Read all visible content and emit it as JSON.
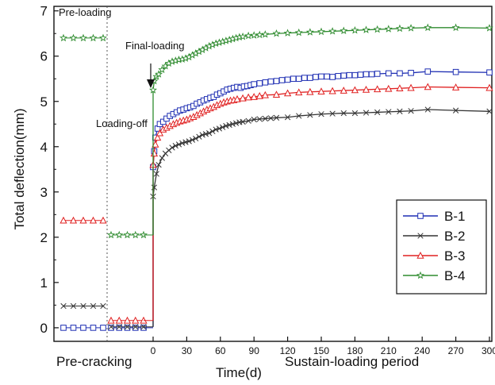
{
  "chart_data": {
    "type": "line",
    "ylabel": "Total deflection(mm)",
    "xlabel": "Time(d)",
    "ylim": [
      -0.3,
      7.1
    ],
    "yticks": [
      0,
      1,
      2,
      3,
      4,
      5,
      6,
      7
    ],
    "xlim": [
      0,
      300
    ],
    "xticks": [
      0,
      30,
      60,
      90,
      120,
      150,
      180,
      210,
      240,
      270,
      300
    ],
    "phase_labels": {
      "left": "Pre-cracking",
      "right": "Sustain-loading period"
    },
    "annotations": {
      "preloading": "Pre-loading",
      "final_loading": "Final-loading",
      "loading_off": "Loading-off"
    },
    "legend_position": "right",
    "grid": false,
    "series": [
      {
        "name": "B-1",
        "color": "#1f2fb3",
        "marker": "square",
        "precrack_segments": [
          {
            "y": 0.0,
            "n": 5
          },
          {
            "y": 0.0,
            "n": 5
          }
        ],
        "values": [
          [
            0,
            0.02
          ],
          [
            0,
            3.55
          ],
          [
            1,
            3.9
          ],
          [
            2,
            4.2
          ],
          [
            4,
            4.4
          ],
          [
            6,
            4.5
          ],
          [
            9,
            4.55
          ],
          [
            12,
            4.62
          ],
          [
            15,
            4.68
          ],
          [
            18,
            4.72
          ],
          [
            21,
            4.76
          ],
          [
            24,
            4.8
          ],
          [
            27,
            4.82
          ],
          [
            30,
            4.85
          ],
          [
            33,
            4.87
          ],
          [
            36,
            4.9
          ],
          [
            39,
            4.95
          ],
          [
            42,
            4.98
          ],
          [
            45,
            5.02
          ],
          [
            48,
            5.05
          ],
          [
            51,
            5.08
          ],
          [
            54,
            5.1
          ],
          [
            57,
            5.15
          ],
          [
            60,
            5.18
          ],
          [
            63,
            5.22
          ],
          [
            66,
            5.26
          ],
          [
            69,
            5.28
          ],
          [
            72,
            5.3
          ],
          [
            75,
            5.32
          ],
          [
            78,
            5.3
          ],
          [
            81,
            5.33
          ],
          [
            84,
            5.34
          ],
          [
            87,
            5.36
          ],
          [
            90,
            5.38
          ],
          [
            95,
            5.4
          ],
          [
            100,
            5.42
          ],
          [
            105,
            5.44
          ],
          [
            110,
            5.45
          ],
          [
            115,
            5.47
          ],
          [
            120,
            5.48
          ],
          [
            125,
            5.5
          ],
          [
            130,
            5.5
          ],
          [
            135,
            5.52
          ],
          [
            140,
            5.52
          ],
          [
            145,
            5.54
          ],
          [
            150,
            5.55
          ],
          [
            155,
            5.55
          ],
          [
            160,
            5.54
          ],
          [
            165,
            5.56
          ],
          [
            170,
            5.57
          ],
          [
            175,
            5.58
          ],
          [
            180,
            5.58
          ],
          [
            185,
            5.59
          ],
          [
            190,
            5.6
          ],
          [
            195,
            5.6
          ],
          [
            200,
            5.61
          ],
          [
            210,
            5.62
          ],
          [
            220,
            5.62
          ],
          [
            230,
            5.63
          ],
          [
            245,
            5.66
          ],
          [
            270,
            5.65
          ],
          [
            300,
            5.64
          ]
        ]
      },
      {
        "name": "B-2",
        "color": "#333333",
        "marker": "cross",
        "precrack_segments": [
          {
            "y": 0.48,
            "n": 5
          },
          {
            "y": 0.02,
            "n": 5
          }
        ],
        "values": [
          [
            0,
            0.02
          ],
          [
            0,
            2.9
          ],
          [
            1,
            3.1
          ],
          [
            3,
            3.4
          ],
          [
            5,
            3.6
          ],
          [
            8,
            3.75
          ],
          [
            11,
            3.85
          ],
          [
            14,
            3.92
          ],
          [
            17,
            3.98
          ],
          [
            20,
            4.02
          ],
          [
            23,
            4.05
          ],
          [
            26,
            4.08
          ],
          [
            29,
            4.1
          ],
          [
            32,
            4.12
          ],
          [
            35,
            4.15
          ],
          [
            38,
            4.18
          ],
          [
            41,
            4.22
          ],
          [
            44,
            4.26
          ],
          [
            47,
            4.28
          ],
          [
            50,
            4.3
          ],
          [
            53,
            4.34
          ],
          [
            56,
            4.38
          ],
          [
            59,
            4.4
          ],
          [
            62,
            4.43
          ],
          [
            65,
            4.46
          ],
          [
            68,
            4.48
          ],
          [
            71,
            4.5
          ],
          [
            74,
            4.52
          ],
          [
            77,
            4.54
          ],
          [
            80,
            4.55
          ],
          [
            85,
            4.57
          ],
          [
            90,
            4.6
          ],
          [
            95,
            4.61
          ],
          [
            100,
            4.62
          ],
          [
            105,
            4.63
          ],
          [
            110,
            4.64
          ],
          [
            120,
            4.65
          ],
          [
            130,
            4.68
          ],
          [
            140,
            4.7
          ],
          [
            150,
            4.72
          ],
          [
            160,
            4.73
          ],
          [
            170,
            4.74
          ],
          [
            180,
            4.74
          ],
          [
            190,
            4.75
          ],
          [
            200,
            4.76
          ],
          [
            210,
            4.77
          ],
          [
            220,
            4.78
          ],
          [
            230,
            4.79
          ],
          [
            245,
            4.82
          ],
          [
            270,
            4.8
          ],
          [
            300,
            4.78
          ]
        ]
      },
      {
        "name": "B-3",
        "color": "#e02020",
        "marker": "triangle",
        "precrack_segments": [
          {
            "y": 2.37,
            "n": 5
          },
          {
            "y": 0.16,
            "n": 5
          }
        ],
        "values": [
          [
            0,
            0.16
          ],
          [
            0,
            3.6
          ],
          [
            1,
            3.85
          ],
          [
            2,
            4.05
          ],
          [
            4,
            4.2
          ],
          [
            6,
            4.3
          ],
          [
            9,
            4.38
          ],
          [
            12,
            4.42
          ],
          [
            15,
            4.46
          ],
          [
            18,
            4.5
          ],
          [
            21,
            4.53
          ],
          [
            24,
            4.56
          ],
          [
            27,
            4.58
          ],
          [
            30,
            4.6
          ],
          [
            33,
            4.63
          ],
          [
            36,
            4.66
          ],
          [
            39,
            4.7
          ],
          [
            42,
            4.74
          ],
          [
            45,
            4.78
          ],
          [
            48,
            4.82
          ],
          [
            51,
            4.85
          ],
          [
            54,
            4.88
          ],
          [
            57,
            4.92
          ],
          [
            60,
            4.95
          ],
          [
            63,
            4.98
          ],
          [
            66,
            5.0
          ],
          [
            69,
            5.02
          ],
          [
            72,
            5.03
          ],
          [
            75,
            5.05
          ],
          [
            80,
            5.07
          ],
          [
            85,
            5.09
          ],
          [
            90,
            5.1
          ],
          [
            95,
            5.12
          ],
          [
            100,
            5.14
          ],
          [
            110,
            5.15
          ],
          [
            120,
            5.18
          ],
          [
            130,
            5.2
          ],
          [
            140,
            5.21
          ],
          [
            150,
            5.22
          ],
          [
            160,
            5.23
          ],
          [
            170,
            5.24
          ],
          [
            180,
            5.25
          ],
          [
            190,
            5.26
          ],
          [
            200,
            5.27
          ],
          [
            210,
            5.28
          ],
          [
            220,
            5.29
          ],
          [
            230,
            5.3
          ],
          [
            245,
            5.32
          ],
          [
            270,
            5.31
          ],
          [
            300,
            5.3
          ]
        ]
      },
      {
        "name": "B-4",
        "color": "#2e8b2e",
        "marker": "star",
        "precrack_segments": [
          {
            "y": 6.4,
            "n": 5
          },
          {
            "y": 2.05,
            "n": 5
          }
        ],
        "values": [
          [
            0,
            2.05
          ],
          [
            0,
            5.25
          ],
          [
            1,
            5.45
          ],
          [
            3,
            5.55
          ],
          [
            5,
            5.6
          ],
          [
            8,
            5.7
          ],
          [
            11,
            5.78
          ],
          [
            14,
            5.84
          ],
          [
            17,
            5.88
          ],
          [
            20,
            5.9
          ],
          [
            23,
            5.92
          ],
          [
            26,
            5.93
          ],
          [
            29,
            5.95
          ],
          [
            32,
            5.98
          ],
          [
            35,
            6.02
          ],
          [
            38,
            6.06
          ],
          [
            41,
            6.1
          ],
          [
            44,
            6.14
          ],
          [
            47,
            6.18
          ],
          [
            50,
            6.22
          ],
          [
            53,
            6.25
          ],
          [
            56,
            6.28
          ],
          [
            59,
            6.3
          ],
          [
            62,
            6.32
          ],
          [
            65,
            6.34
          ],
          [
            68,
            6.36
          ],
          [
            71,
            6.38
          ],
          [
            74,
            6.4
          ],
          [
            77,
            6.42
          ],
          [
            80,
            6.43
          ],
          [
            85,
            6.45
          ],
          [
            90,
            6.46
          ],
          [
            95,
            6.47
          ],
          [
            100,
            6.48
          ],
          [
            110,
            6.5
          ],
          [
            120,
            6.51
          ],
          [
            130,
            6.52
          ],
          [
            140,
            6.53
          ],
          [
            150,
            6.54
          ],
          [
            160,
            6.55
          ],
          [
            170,
            6.56
          ],
          [
            180,
            6.57
          ],
          [
            190,
            6.58
          ],
          [
            200,
            6.59
          ],
          [
            210,
            6.6
          ],
          [
            220,
            6.61
          ],
          [
            230,
            6.62
          ],
          [
            245,
            6.63
          ],
          [
            270,
            6.63
          ],
          [
            300,
            6.62
          ]
        ]
      }
    ]
  }
}
